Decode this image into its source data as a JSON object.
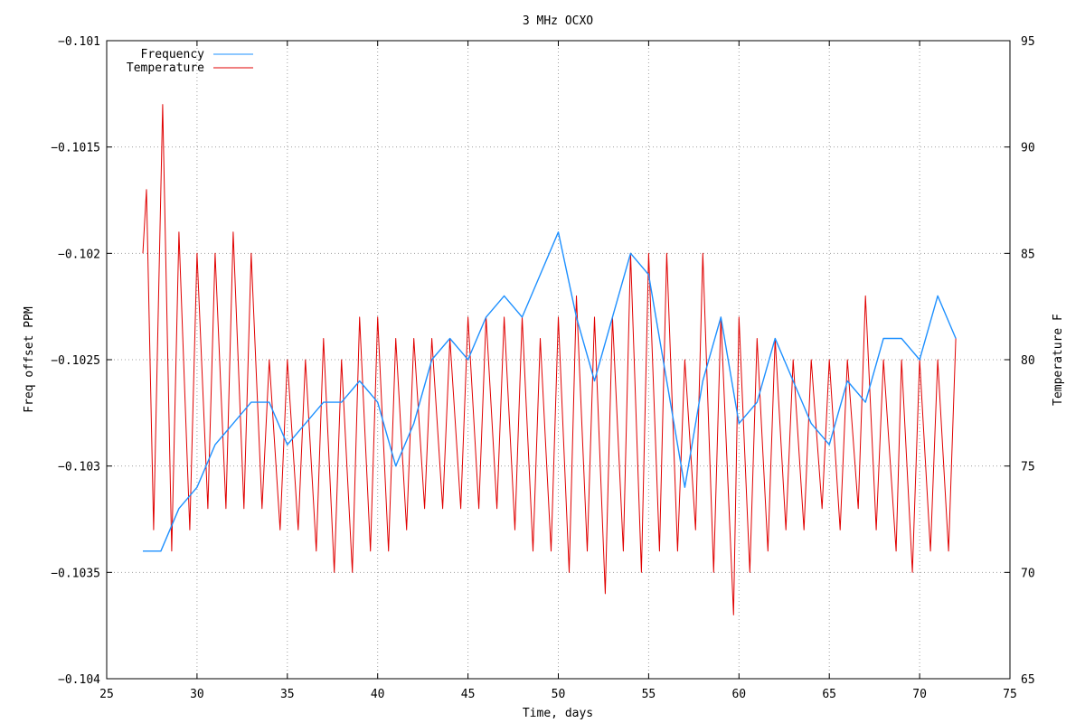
{
  "chart_data": {
    "type": "line",
    "title": "3 MHz OCXO",
    "xlabel": "Time, days",
    "ylabel": "Freq offset PPM",
    "y2label": "Temperature F",
    "xlim": [
      25,
      75
    ],
    "ylim": [
      -0.104,
      -0.101
    ],
    "y2lim": [
      65,
      95
    ],
    "x_ticks": [
      25,
      30,
      35,
      40,
      45,
      50,
      55,
      60,
      65,
      70,
      75
    ],
    "x_tick_labels": [
      "25",
      "30",
      "35",
      "40",
      "45",
      "50",
      "55",
      "60",
      "65",
      "70",
      "75"
    ],
    "y_ticks": [
      -0.104,
      -0.1035,
      -0.103,
      -0.1025,
      -0.102,
      -0.1015,
      -0.101
    ],
    "y_tick_labels": [
      "−0.104",
      "−0.1035",
      "−0.103",
      "−0.1025",
      "−0.102",
      "−0.1015",
      "−0.101"
    ],
    "y2_ticks": [
      65,
      70,
      75,
      80,
      85,
      90,
      95
    ],
    "y2_tick_labels": [
      "65",
      "70",
      "75",
      "80",
      "85",
      "90",
      "95"
    ],
    "grid": true,
    "legend_position": "top-left",
    "colors": {
      "frequency": "#1e90ff",
      "temperature": "#e00000"
    },
    "series": [
      {
        "name": "Frequency",
        "axis": "left",
        "x": [
          27.0,
          28.0,
          29.0,
          30.0,
          31.0,
          32.0,
          33.0,
          34.0,
          35.0,
          36.0,
          37.0,
          38.0,
          39.0,
          40.0,
          41.0,
          42.0,
          43.0,
          44.0,
          45.0,
          46.0,
          47.0,
          48.0,
          49.0,
          50.0,
          51.0,
          52.0,
          53.0,
          54.0,
          55.0,
          56.0,
          57.0,
          58.0,
          59.0,
          60.0,
          61.0,
          62.0,
          63.0,
          64.0,
          65.0,
          66.0,
          67.0,
          68.0,
          69.0,
          70.0,
          71.0,
          72.0
        ],
        "values": [
          -0.1034,
          -0.1034,
          -0.1032,
          -0.1031,
          -0.1029,
          -0.1028,
          -0.1027,
          -0.1027,
          -0.1029,
          -0.1028,
          -0.1027,
          -0.1027,
          -0.1026,
          -0.1027,
          -0.103,
          -0.1028,
          -0.1025,
          -0.1024,
          -0.1025,
          -0.1023,
          -0.1022,
          -0.1023,
          -0.1021,
          -0.1019,
          -0.1023,
          -0.1026,
          -0.1023,
          -0.102,
          -0.1021,
          -0.1026,
          -0.1031,
          -0.1026,
          -0.1023,
          -0.1028,
          -0.1027,
          -0.1024,
          -0.1026,
          -0.1028,
          -0.1029,
          -0.1026,
          -0.1027,
          -0.1024,
          -0.1024,
          -0.1025,
          -0.1022,
          -0.1024
        ]
      },
      {
        "name": "Temperature",
        "axis": "right",
        "x": [
          27.0,
          27.2,
          27.6,
          28.1,
          28.6,
          29.0,
          29.6,
          30.0,
          30.6,
          31.0,
          31.6,
          32.0,
          32.6,
          33.0,
          33.6,
          34.0,
          34.6,
          35.0,
          35.6,
          36.0,
          36.6,
          37.0,
          37.6,
          38.0,
          38.6,
          39.0,
          39.6,
          40.0,
          40.6,
          41.0,
          41.6,
          42.0,
          42.6,
          43.0,
          43.6,
          44.0,
          44.6,
          45.0,
          45.6,
          46.0,
          46.6,
          47.0,
          47.6,
          48.0,
          48.6,
          49.0,
          49.6,
          50.0,
          50.6,
          51.0,
          51.6,
          52.0,
          52.6,
          53.0,
          53.6,
          54.0,
          54.6,
          55.0,
          55.6,
          56.0,
          56.6,
          57.0,
          57.6,
          58.0,
          58.6,
          59.0,
          59.7,
          60.0,
          60.6,
          61.0,
          61.6,
          62.0,
          62.6,
          63.0,
          63.6,
          64.0,
          64.6,
          65.0,
          65.6,
          66.0,
          66.6,
          67.0,
          67.6,
          68.0,
          68.7,
          69.0,
          69.6,
          70.0,
          70.6,
          71.0,
          71.6,
          72.0
        ],
        "values": [
          85,
          88,
          72,
          92,
          71,
          86,
          72,
          85,
          73,
          85,
          73,
          86,
          73,
          85,
          73,
          80,
          72,
          80,
          72,
          80,
          71,
          81,
          70,
          80,
          70,
          82,
          71,
          82,
          71,
          81,
          72,
          81,
          73,
          81,
          73,
          81,
          73,
          82,
          73,
          82,
          73,
          82,
          72,
          82,
          71,
          81,
          71,
          82,
          70,
          83,
          71,
          82,
          69,
          82,
          71,
          85,
          70,
          85,
          71,
          85,
          71,
          80,
          72,
          85,
          70,
          82,
          68,
          82,
          70,
          81,
          71,
          81,
          72,
          80,
          72,
          80,
          73,
          80,
          72,
          80,
          73,
          83,
          72,
          80,
          71,
          80,
          70,
          80,
          71,
          80,
          71,
          81
        ]
      }
    ]
  }
}
